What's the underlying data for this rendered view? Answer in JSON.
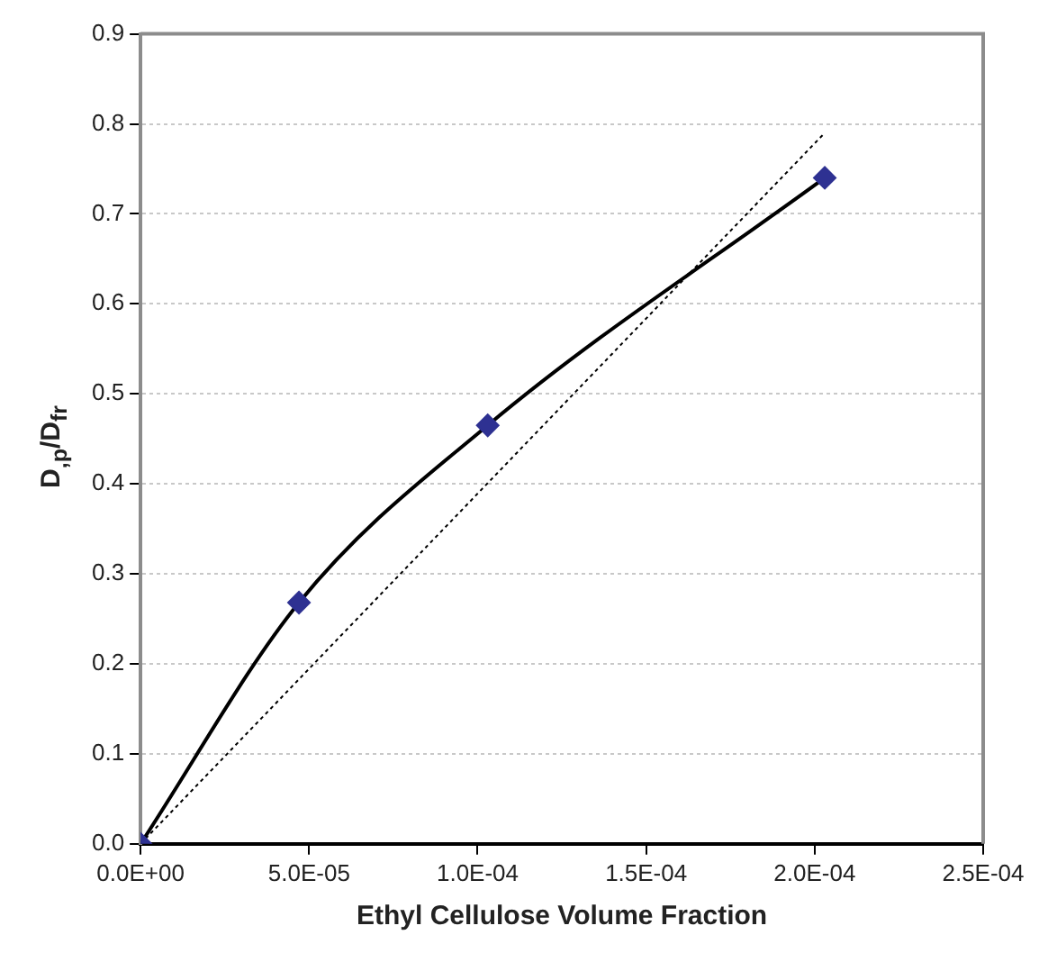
{
  "chart_data": {
    "type": "scatter",
    "xlabel": "Ethyl Cellulose Volume Fraction",
    "ylabel": "D$_{,p}$/D$_{fr}$",
    "xlim": [
      0,
      0.00025
    ],
    "xticks": [
      {
        "value": 0,
        "label": "0.0E+00"
      },
      {
        "value": 5e-05,
        "label": "5.0E-05"
      },
      {
        "value": 0.0001,
        "label": "1.0E-04"
      },
      {
        "value": 0.00015,
        "label": "1.5E-04"
      },
      {
        "value": 0.0002,
        "label": "2.0E-04"
      },
      {
        "value": 0.00025,
        "label": "2.5E-04"
      }
    ],
    "ylim": [
      0,
      0.9
    ],
    "yticks": [
      {
        "value": 0,
        "label": "0.0"
      },
      0.1,
      0.2,
      0.3,
      0.4,
      0.5,
      0.6,
      0.7,
      0.8,
      0.9
    ],
    "grid": "y",
    "series": [
      {
        "type": "line",
        "color": "#000000",
        "line_style": "dotted",
        "marker": "none",
        "x": [
          0,
          0.000203
        ],
        "values": [
          0,
          0.79
        ]
      },
      {
        "type": "line",
        "color": "#000000",
        "line_style": "solid",
        "marker": "none",
        "x": [
          0,
          4.7e-05,
          0.000103,
          0.000203
        ],
        "values": [
          0,
          0.268,
          0.465,
          0.74
        ]
      },
      {
        "type": "scatter",
        "color": "#2e3192",
        "marker": "diamond",
        "x": [
          0,
          4.7e-05,
          0.000103,
          0.000203
        ],
        "values": [
          0,
          0.268,
          0.465,
          0.74
        ]
      }
    ]
  }
}
